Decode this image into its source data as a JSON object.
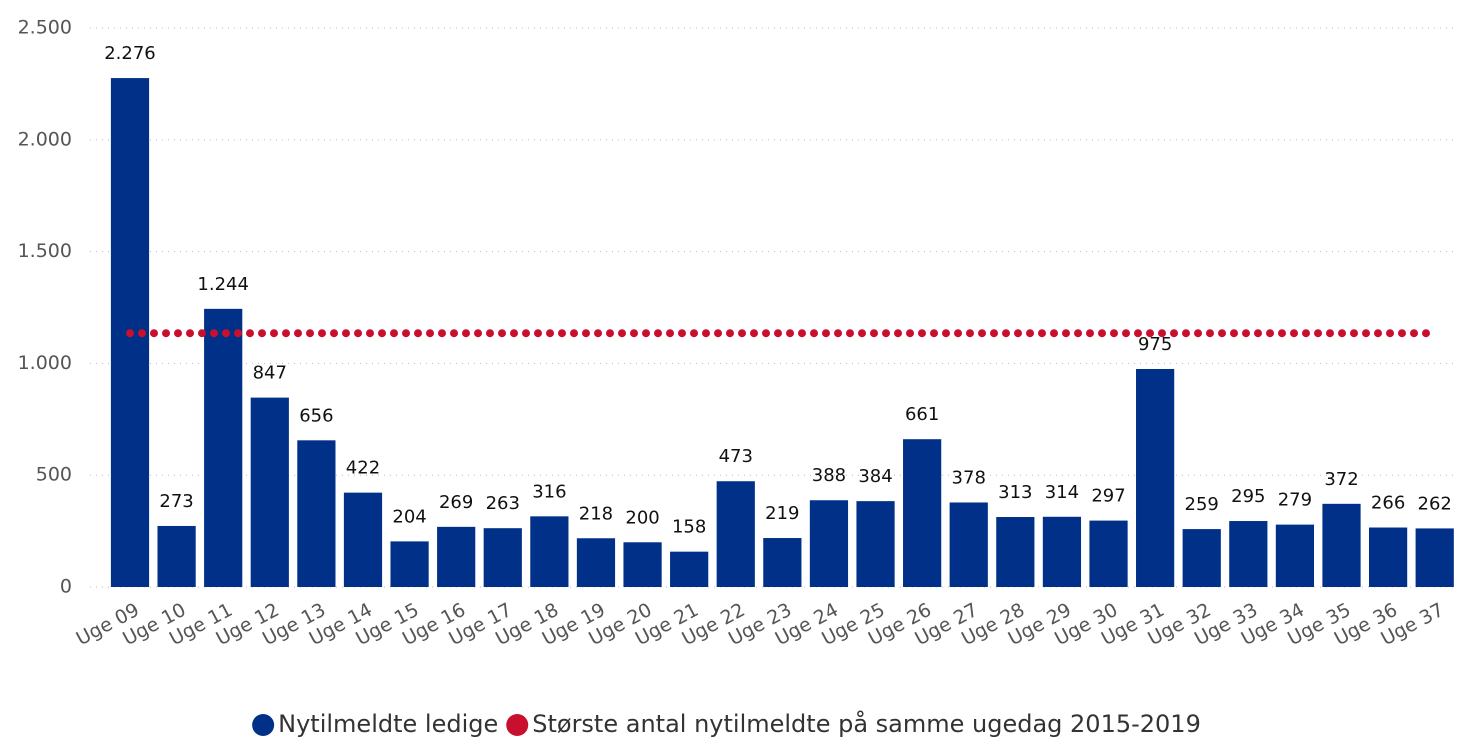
{
  "chart_data": {
    "type": "bar",
    "categories": [
      "Uge 09",
      "Uge 10",
      "Uge 11",
      "Uge 12",
      "Uge 13",
      "Uge 14",
      "Uge 15",
      "Uge 16",
      "Uge 17",
      "Uge 18",
      "Uge 19",
      "Uge 20",
      "Uge 21",
      "Uge 22",
      "Uge 23",
      "Uge 24",
      "Uge 25",
      "Uge 26",
      "Uge 27",
      "Uge 28",
      "Uge 29",
      "Uge 30",
      "Uge 31",
      "Uge 32",
      "Uge 33",
      "Uge 34",
      "Uge 35",
      "Uge 36",
      "Uge 37"
    ],
    "series": [
      {
        "name": "Nytilmeldte ledige",
        "color": "#003087",
        "type": "bar",
        "values": [
          2276,
          273,
          1244,
          847,
          656,
          422,
          204,
          269,
          263,
          316,
          218,
          200,
          158,
          473,
          219,
          388,
          384,
          661,
          378,
          313,
          314,
          297,
          975,
          259,
          295,
          279,
          372,
          266,
          262
        ],
        "value_labels": [
          "2.276",
          "273",
          "1.244",
          "847",
          "656",
          "422",
          "204",
          "269",
          "263",
          "316",
          "218",
          "200",
          "158",
          "473",
          "219",
          "388",
          "384",
          "661",
          "378",
          "313",
          "314",
          "297",
          "975",
          "259",
          "295",
          "279",
          "372",
          "266",
          "262"
        ]
      },
      {
        "name": "Største antal nytilmeldte på samme ugedag 2015-2019",
        "color": "#c8102e",
        "type": "line",
        "style": "dotted",
        "values": [
          1135,
          1135,
          1135,
          1135,
          1135,
          1135,
          1135,
          1135,
          1135,
          1135,
          1135,
          1135,
          1135,
          1135,
          1135,
          1135,
          1135,
          1135,
          1135,
          1135,
          1135,
          1135,
          1135,
          1135,
          1135,
          1135,
          1135,
          1135,
          1135
        ]
      }
    ],
    "ylim": [
      0,
      2500
    ],
    "yticks": [
      0,
      500,
      {
        "value": 1000,
        "label": "1.000"
      },
      {
        "value": 1500,
        "label": "1.500"
      },
      {
        "value": 2000,
        "label": "2.000"
      },
      {
        "value": 2500,
        "label": "2.500"
      }
    ],
    "grid": true,
    "legend": "bottom"
  }
}
